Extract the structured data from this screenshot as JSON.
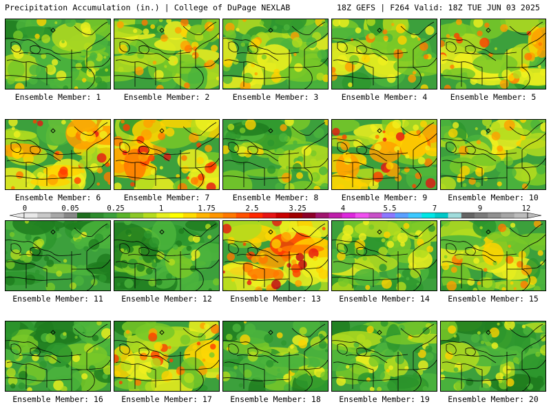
{
  "header": {
    "left": "Precipitation Accumulation (in.) | College of DuPage NEXLAB",
    "right": "18Z GEFS | F264 Valid: 18Z TUE JUN 03 2025"
  },
  "members": [
    {
      "label": "Ensemble Member: 1",
      "intensity": 0.35
    },
    {
      "label": "Ensemble Member: 2",
      "intensity": 0.55
    },
    {
      "label": "Ensemble Member: 3",
      "intensity": 0.45
    },
    {
      "label": "Ensemble Member: 4",
      "intensity": 0.5
    },
    {
      "label": "Ensemble Member: 5",
      "intensity": 0.6
    },
    {
      "label": "Ensemble Member: 6",
      "intensity": 0.7
    },
    {
      "label": "Ensemble Member: 7",
      "intensity": 0.75
    },
    {
      "label": "Ensemble Member: 8",
      "intensity": 0.38
    },
    {
      "label": "Ensemble Member: 9",
      "intensity": 0.72
    },
    {
      "label": "Ensemble Member: 10",
      "intensity": 0.45
    },
    {
      "label": "Ensemble Member: 11",
      "intensity": 0.18
    },
    {
      "label": "Ensemble Member: 12",
      "intensity": 0.22
    },
    {
      "label": "Ensemble Member: 13",
      "intensity": 0.85
    },
    {
      "label": "Ensemble Member: 14",
      "intensity": 0.4
    },
    {
      "label": "Ensemble Member: 15",
      "intensity": 0.55
    },
    {
      "label": "Ensemble Member: 16",
      "intensity": 0.25
    },
    {
      "label": "Ensemble Member: 17",
      "intensity": 0.6
    },
    {
      "label": "Ensemble Member: 18",
      "intensity": 0.35
    },
    {
      "label": "Ensemble Member: 19",
      "intensity": 0.35
    },
    {
      "label": "Ensemble Member: 20",
      "intensity": 0.32
    }
  ],
  "colorbar": {
    "labels": [
      "0",
      "0.05",
      "0.25",
      "1",
      "1.75",
      "2.5",
      "3.25",
      "4",
      "5.5",
      "7",
      "9",
      "12"
    ],
    "colors": [
      "#e8e8e8",
      "#c8c8c8",
      "#a8a8a8",
      "#888888",
      "#1e6e1e",
      "#2d8c2d",
      "#3ca03c",
      "#5ab42a",
      "#8cc828",
      "#b4dc1e",
      "#e6f01e",
      "#ffff00",
      "#ffdc00",
      "#ffb400",
      "#ff9600",
      "#ff7800",
      "#ff5000",
      "#ff2800",
      "#e61414",
      "#c80000",
      "#a00000",
      "#8c0028",
      "#a0146e",
      "#be1eaa",
      "#dc28dc",
      "#f050f0",
      "#c850c8",
      "#8c78ff",
      "#5aa0ff",
      "#3cc8ff",
      "#00e6e6",
      "#00c8c8",
      "#a0dcdc",
      "#646464",
      "#7a7a7a",
      "#909090",
      "#a6a6a6",
      "#bcbcbc"
    ]
  }
}
